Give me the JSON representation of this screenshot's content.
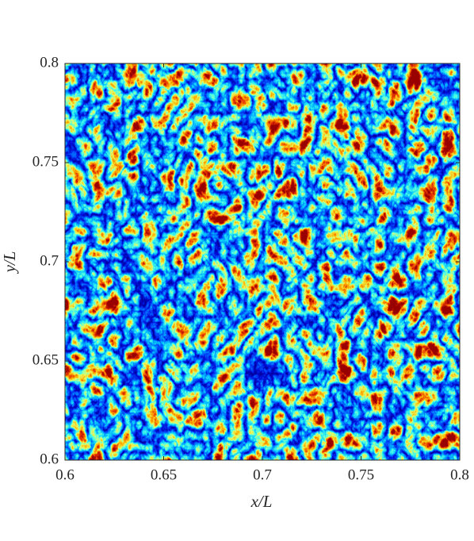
{
  "chart_data": {
    "type": "heatmap",
    "colormap": "jet",
    "xlabel": "x/L",
    "ylabel": "y/L",
    "xlim": [
      0.6,
      0.8
    ],
    "ylim": [
      0.6,
      0.8
    ],
    "xticks": [
      0.6,
      0.65,
      0.7,
      0.75,
      0.8
    ],
    "yticks": [
      0.6,
      0.65,
      0.7,
      0.75,
      0.8
    ]
  }
}
